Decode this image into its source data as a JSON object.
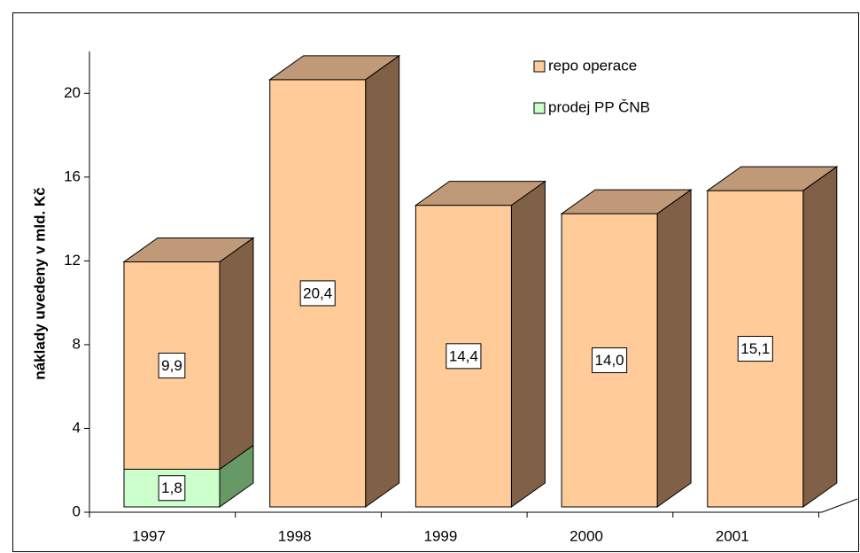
{
  "chart_data": {
    "type": "bar3d_stacked",
    "y_label": "náklady uvedeny v mld. Kč",
    "categories": [
      "1997",
      "1998",
      "1999",
      "2000",
      "2001"
    ],
    "series": [
      {
        "name": "prodej PP ČNB",
        "color": "#ccffcc",
        "side_color": "#669966",
        "values": [
          1.8,
          null,
          null,
          null,
          null
        ],
        "value_labels": [
          "1,8",
          null,
          null,
          null,
          null
        ]
      },
      {
        "name": "repo operace",
        "color": "#ffcc99",
        "side_color": "#806047",
        "values": [
          9.9,
          20.4,
          14.4,
          14.0,
          15.1
        ],
        "value_labels": [
          "9,9",
          "20,4",
          "14,4",
          "14,0",
          "15,1"
        ]
      }
    ],
    "top_color": "#c09a78",
    "ylim": [
      0,
      22
    ],
    "yticks": [
      0,
      4,
      8,
      12,
      16,
      20
    ]
  }
}
